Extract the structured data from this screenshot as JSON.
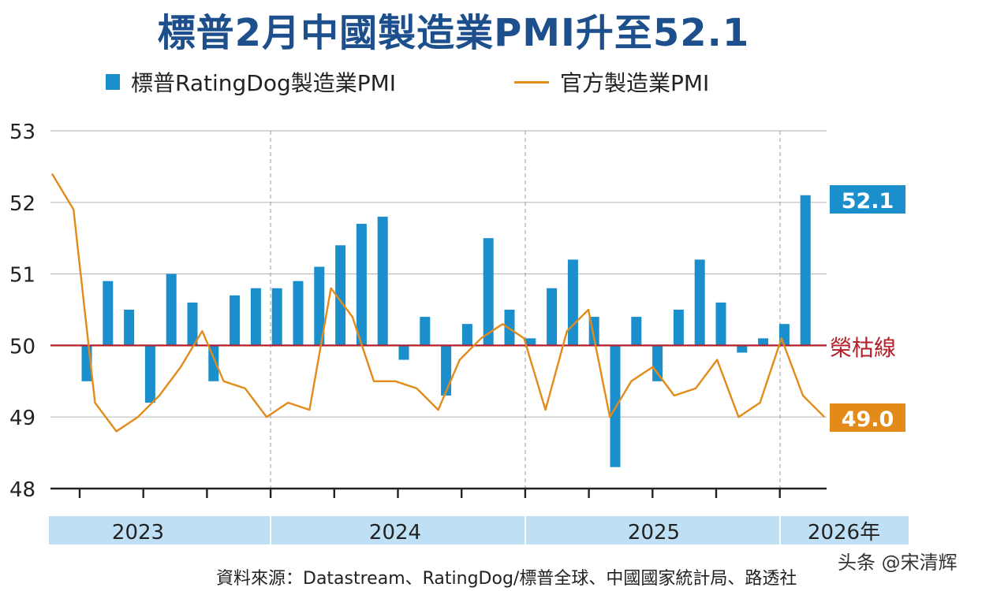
{
  "title": "標普2月中國製造業PMI升至52.1",
  "legend": {
    "bar_label": "標普RatingDog製造業PMI",
    "line_label": "官方製造業PMI"
  },
  "boom_bust_label": "榮枯線",
  "callouts": {
    "bar_latest": "52.1",
    "line_latest": "49.0"
  },
  "source": "資料來源：Datastream、RatingDog/標普全球、中國國家統計局、路透社",
  "watermark": "头条 @宋清辉",
  "colors": {
    "bar": "#1b8fcb",
    "line": "#e38b1a",
    "boom_line": "#b3202a",
    "year_band": "#bfe0f4",
    "title": "#1d4f8c"
  },
  "chart_data": {
    "type": "bar",
    "title": "標普2月中國製造業PMI升至52.1",
    "xlabel": "",
    "ylabel": "",
    "ylim": [
      48,
      53
    ],
    "yticks": [
      "53",
      "52",
      "51",
      "50",
      "49",
      "48"
    ],
    "baseline": 50,
    "grid": true,
    "legend_position": "top",
    "years": [
      "2023",
      "2024",
      "2025",
      "2026年"
    ],
    "series": [
      {
        "name": "標普RatingDog製造業PMI",
        "type": "bar",
        "values": [
          49.5,
          50.9,
          50.5,
          49.2,
          51.0,
          50.6,
          49.5,
          50.7,
          50.8,
          50.8,
          50.9,
          51.1,
          51.4,
          51.7,
          51.8,
          49.8,
          50.4,
          49.3,
          50.3,
          51.5,
          50.5,
          50.1,
          50.8,
          51.2,
          50.4,
          48.3,
          50.4,
          49.5,
          50.5,
          51.2,
          50.6,
          49.9,
          50.1,
          50.3,
          52.1
        ]
      },
      {
        "name": "官方製造業PMI",
        "type": "line",
        "values": [
          52.4,
          51.9,
          49.2,
          48.8,
          49.0,
          49.3,
          49.7,
          50.2,
          49.5,
          49.4,
          49.0,
          49.2,
          49.1,
          50.8,
          50.4,
          49.5,
          49.5,
          49.4,
          49.1,
          49.8,
          50.1,
          50.3,
          50.1,
          49.1,
          50.2,
          50.5,
          49.0,
          49.5,
          49.7,
          49.3,
          49.4,
          49.8,
          49.0,
          49.2,
          50.1,
          49.3,
          49.0
        ]
      }
    ]
  }
}
